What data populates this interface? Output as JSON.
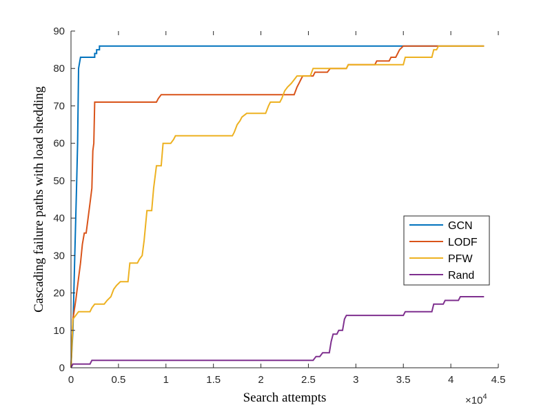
{
  "chart_data": {
    "type": "line",
    "title": "",
    "xlabel": "Search attempts",
    "ylabel": "Cascading failure paths with load shedding",
    "x_multiplier_label": "×10",
    "x_multiplier_exponent": "4",
    "xlim": [
      0,
      4.5
    ],
    "ylim": [
      0,
      90
    ],
    "x_scale": 10000,
    "x_ticks": [
      0,
      0.5,
      1,
      1.5,
      2,
      2.5,
      3,
      3.5,
      4,
      4.5
    ],
    "x_tick_labels": [
      "0",
      "0.5",
      "1",
      "1.5",
      "2",
      "2.5",
      "3",
      "3.5",
      "4",
      "4.5"
    ],
    "y_ticks": [
      0,
      10,
      20,
      30,
      40,
      50,
      60,
      70,
      80,
      90
    ],
    "y_tick_labels": [
      "0",
      "10",
      "20",
      "30",
      "40",
      "50",
      "60",
      "70",
      "80",
      "90"
    ],
    "grid": false,
    "legend_position": "right",
    "series": [
      {
        "name": "GCN",
        "color": "#0072BD",
        "points": [
          [
            0,
            0
          ],
          [
            0.02,
            10
          ],
          [
            0.04,
            30
          ],
          [
            0.06,
            50
          ],
          [
            0.07,
            60
          ],
          [
            0.08,
            80
          ],
          [
            0.1,
            83
          ],
          [
            0.2,
            83
          ],
          [
            0.25,
            83
          ],
          [
            0.25,
            84
          ],
          [
            0.27,
            84
          ],
          [
            0.27,
            85
          ],
          [
            0.3,
            85
          ],
          [
            0.3,
            86
          ],
          [
            2.0,
            86
          ],
          [
            4.35,
            86
          ]
        ]
      },
      {
        "name": "LODF",
        "color": "#D95319",
        "points": [
          [
            0,
            0
          ],
          [
            0.02,
            13
          ],
          [
            0.05,
            18
          ],
          [
            0.08,
            24
          ],
          [
            0.1,
            28
          ],
          [
            0.12,
            33
          ],
          [
            0.14,
            36
          ],
          [
            0.16,
            36
          ],
          [
            0.18,
            40
          ],
          [
            0.2,
            44
          ],
          [
            0.22,
            48
          ],
          [
            0.23,
            58
          ],
          [
            0.24,
            60
          ],
          [
            0.25,
            71
          ],
          [
            0.9,
            71
          ],
          [
            0.92,
            72
          ],
          [
            0.95,
            73
          ],
          [
            2.35,
            73
          ],
          [
            2.38,
            75
          ],
          [
            2.4,
            76
          ],
          [
            2.42,
            77
          ],
          [
            2.44,
            78
          ],
          [
            2.55,
            78
          ],
          [
            2.57,
            79
          ],
          [
            2.7,
            79
          ],
          [
            2.73,
            80
          ],
          [
            2.9,
            80
          ],
          [
            2.92,
            81
          ],
          [
            3.2,
            81
          ],
          [
            3.22,
            82
          ],
          [
            3.35,
            82
          ],
          [
            3.37,
            83
          ],
          [
            3.42,
            83
          ],
          [
            3.44,
            84
          ],
          [
            3.46,
            85
          ],
          [
            3.5,
            86
          ],
          [
            4.35,
            86
          ]
        ]
      },
      {
        "name": "PFW",
        "color": "#EDB120",
        "points": [
          [
            0,
            0
          ],
          [
            0.02,
            13
          ],
          [
            0.05,
            14
          ],
          [
            0.08,
            15
          ],
          [
            0.2,
            15
          ],
          [
            0.22,
            16
          ],
          [
            0.25,
            17
          ],
          [
            0.35,
            17
          ],
          [
            0.38,
            18
          ],
          [
            0.42,
            19
          ],
          [
            0.45,
            21
          ],
          [
            0.48,
            22
          ],
          [
            0.52,
            23
          ],
          [
            0.6,
            23
          ],
          [
            0.62,
            28
          ],
          [
            0.7,
            28
          ],
          [
            0.72,
            29
          ],
          [
            0.75,
            30
          ],
          [
            0.77,
            34
          ],
          [
            0.8,
            42
          ],
          [
            0.85,
            42
          ],
          [
            0.87,
            48
          ],
          [
            0.9,
            54
          ],
          [
            0.95,
            54
          ],
          [
            0.97,
            60
          ],
          [
            1.05,
            60
          ],
          [
            1.08,
            61
          ],
          [
            1.1,
            62
          ],
          [
            1.7,
            62
          ],
          [
            1.72,
            63
          ],
          [
            1.75,
            65
          ],
          [
            1.78,
            66
          ],
          [
            1.8,
            67
          ],
          [
            1.85,
            68
          ],
          [
            2.05,
            68
          ],
          [
            2.08,
            70
          ],
          [
            2.1,
            71
          ],
          [
            2.2,
            71
          ],
          [
            2.22,
            72
          ],
          [
            2.25,
            74
          ],
          [
            2.28,
            75
          ],
          [
            2.32,
            76
          ],
          [
            2.35,
            77
          ],
          [
            2.38,
            78
          ],
          [
            2.52,
            78
          ],
          [
            2.55,
            80
          ],
          [
            2.9,
            80
          ],
          [
            2.92,
            81
          ],
          [
            3.5,
            81
          ],
          [
            3.52,
            83
          ],
          [
            3.8,
            83
          ],
          [
            3.82,
            85
          ],
          [
            3.85,
            85
          ],
          [
            3.87,
            86
          ],
          [
            4.35,
            86
          ]
        ]
      },
      {
        "name": "Rand",
        "color": "#7E2F8E",
        "points": [
          [
            0,
            0
          ],
          [
            0.02,
            1
          ],
          [
            0.2,
            1
          ],
          [
            0.22,
            2
          ],
          [
            2.55,
            2
          ],
          [
            2.58,
            3
          ],
          [
            2.62,
            3
          ],
          [
            2.65,
            4
          ],
          [
            2.72,
            4
          ],
          [
            2.74,
            7
          ],
          [
            2.76,
            9
          ],
          [
            2.8,
            9
          ],
          [
            2.82,
            10
          ],
          [
            2.86,
            10
          ],
          [
            2.88,
            13
          ],
          [
            2.9,
            14
          ],
          [
            3.5,
            14
          ],
          [
            3.52,
            15
          ],
          [
            3.8,
            15
          ],
          [
            3.82,
            17
          ],
          [
            3.92,
            17
          ],
          [
            3.94,
            18
          ],
          [
            4.08,
            18
          ],
          [
            4.1,
            19
          ],
          [
            4.35,
            19
          ]
        ]
      }
    ]
  }
}
